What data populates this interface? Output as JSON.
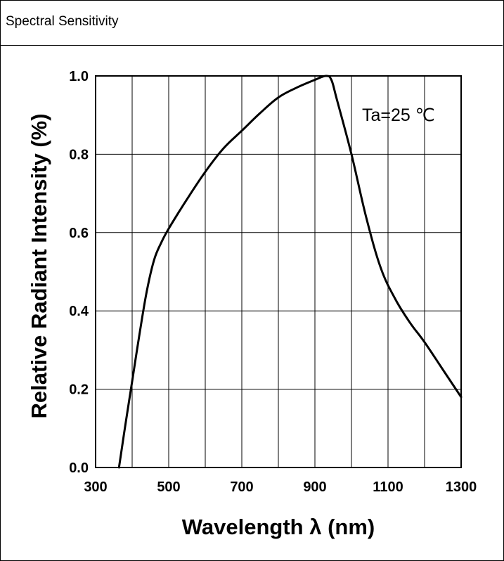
{
  "header": {
    "title": "Spectral Sensitivity"
  },
  "chart_data": {
    "type": "line",
    "xlabel": "Wavelength λ (nm)",
    "ylabel": "Relative Radiant Intensity (%)",
    "annotation": "Ta=25 ℃",
    "xlim": [
      300,
      1300
    ],
    "ylim": [
      0.0,
      1.0
    ],
    "x_ticks": [
      "300",
      "500",
      "700",
      "900",
      "1100",
      "1300"
    ],
    "y_ticks": [
      "0.0",
      "0.2",
      "0.4",
      "0.6",
      "0.8",
      "1.0"
    ],
    "x_grid_step": 100,
    "y_grid_step": 0.2,
    "grid": true,
    "series": [
      {
        "x": [
          364,
          380,
          400,
          420,
          440,
          460,
          480,
          500,
          550,
          600,
          650,
          700,
          750,
          800,
          850,
          900,
          930,
          945,
          960,
          1000,
          1040,
          1080,
          1120,
          1160,
          1200,
          1250,
          1300
        ],
        "y": [
          0.0,
          0.1,
          0.22,
          0.34,
          0.45,
          0.53,
          0.575,
          0.61,
          0.685,
          0.755,
          0.815,
          0.86,
          0.905,
          0.945,
          0.97,
          0.99,
          1.0,
          0.99,
          0.94,
          0.8,
          0.64,
          0.51,
          0.43,
          0.37,
          0.32,
          0.25,
          0.18
        ]
      }
    ]
  }
}
